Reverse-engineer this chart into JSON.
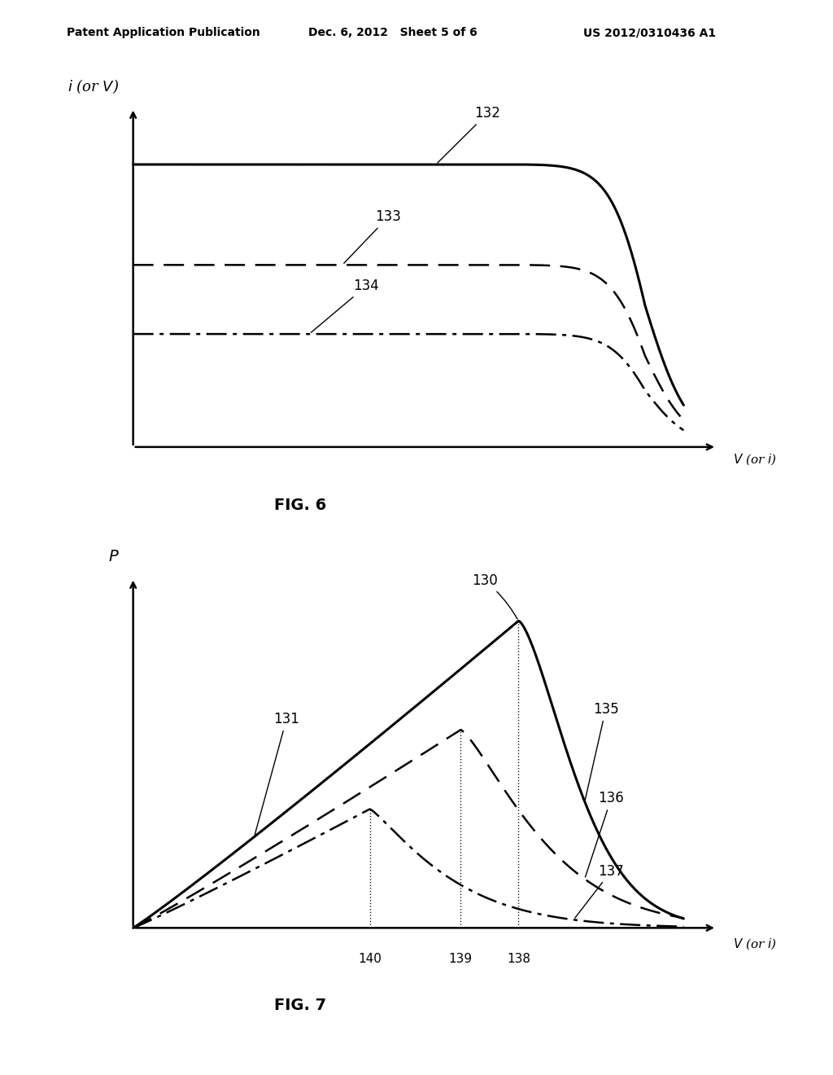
{
  "header_left": "Patent Application Publication",
  "header_center": "Dec. 6, 2012   Sheet 5 of 6",
  "header_right": "US 2012/0310436 A1",
  "fig6_title": "FIG. 6",
  "fig7_title": "FIG. 7",
  "fig6_ylabel": "i (or V)",
  "fig6_xlabel": "V (or i)",
  "fig7_ylabel": "P",
  "fig7_xlabel": "V (or i)",
  "bg_color": "#ffffff",
  "line_color": "#000000",
  "label_132": "132",
  "label_133": "133",
  "label_134": "134",
  "label_130": "130",
  "label_131": "131",
  "label_135": "135",
  "label_136": "136",
  "label_137": "137",
  "label_138": "138",
  "label_139": "139",
  "label_140": "140"
}
